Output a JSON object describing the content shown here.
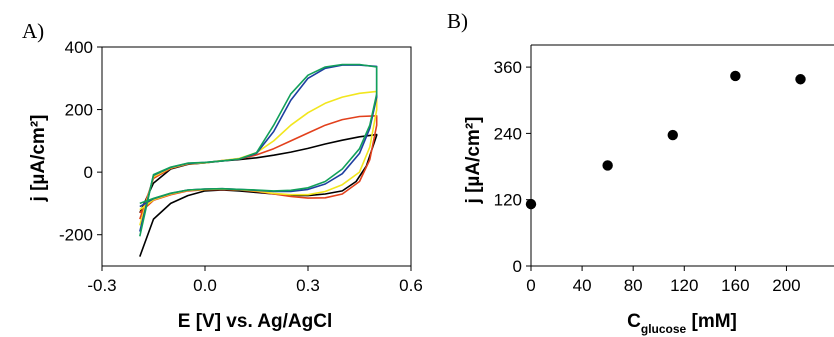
{
  "chart_data": [
    {
      "panel_label": "A)",
      "type": "line",
      "xlabel": "E [V] vs. Ag/AgCl",
      "ylabel": "j [µA/cm²]",
      "xlim": [
        -0.3,
        0.6
      ],
      "ylim": [
        -300,
        400
      ],
      "xticks": [
        "-0.3",
        "0.0",
        "0.3",
        "0.6"
      ],
      "yticks": [
        "-200",
        "0",
        "200",
        "400"
      ],
      "grid": false,
      "series": [
        {
          "color": "#000000",
          "x": [
            -0.19,
            -0.15,
            -0.1,
            -0.05,
            0.0,
            0.05,
            0.1,
            0.15,
            0.2,
            0.25,
            0.3,
            0.35,
            0.4,
            0.45,
            0.5,
            0.5,
            0.47,
            0.44,
            0.4,
            0.35,
            0.3,
            0.25,
            0.2,
            0.15,
            0.1,
            0.05,
            0.0,
            -0.05,
            -0.1,
            -0.15,
            -0.19
          ],
          "y": [
            -130,
            -35,
            10,
            25,
            30,
            36,
            40,
            46,
            54,
            64,
            76,
            90,
            102,
            113,
            120,
            118,
            20,
            -30,
            -60,
            -70,
            -75,
            -74,
            -70,
            -65,
            -60,
            -57,
            -60,
            -75,
            -100,
            -150,
            -270
          ]
        },
        {
          "color": "#e2401c",
          "x": [
            -0.19,
            -0.15,
            -0.1,
            -0.05,
            0.0,
            0.05,
            0.1,
            0.15,
            0.2,
            0.25,
            0.3,
            0.35,
            0.4,
            0.45,
            0.5,
            0.5,
            0.48,
            0.45,
            0.4,
            0.35,
            0.3,
            0.25,
            0.2,
            0.15,
            0.1,
            0.05,
            0.0,
            -0.05,
            -0.1,
            -0.15,
            -0.19
          ],
          "y": [
            -150,
            -20,
            12,
            26,
            30,
            37,
            42,
            55,
            75,
            100,
            125,
            150,
            168,
            178,
            180,
            150,
            40,
            -30,
            -70,
            -82,
            -83,
            -78,
            -70,
            -62,
            -57,
            -55,
            -56,
            -60,
            -72,
            -90,
            -130
          ]
        },
        {
          "color": "#f2e61e",
          "x": [
            -0.19,
            -0.15,
            -0.1,
            -0.05,
            0.0,
            0.05,
            0.1,
            0.15,
            0.2,
            0.25,
            0.3,
            0.35,
            0.4,
            0.45,
            0.5,
            0.5,
            0.48,
            0.45,
            0.4,
            0.35,
            0.3,
            0.25,
            0.2,
            0.15,
            0.1,
            0.05,
            0.0,
            -0.05,
            -0.1,
            -0.15,
            -0.19
          ],
          "y": [
            -170,
            -15,
            14,
            27,
            30,
            37,
            44,
            62,
            100,
            150,
            190,
            220,
            240,
            252,
            258,
            200,
            80,
            0,
            -40,
            -62,
            -72,
            -72,
            -68,
            -60,
            -56,
            -54,
            -55,
            -58,
            -70,
            -88,
            -120
          ]
        },
        {
          "color": "#1e3fa0",
          "x": [
            -0.19,
            -0.15,
            -0.1,
            -0.05,
            0.0,
            0.05,
            0.1,
            0.15,
            0.2,
            0.25,
            0.3,
            0.35,
            0.4,
            0.45,
            0.5,
            0.5,
            0.48,
            0.45,
            0.4,
            0.35,
            0.3,
            0.25,
            0.2,
            0.15,
            0.1,
            0.05,
            0.0,
            -0.05,
            -0.1,
            -0.15,
            -0.19
          ],
          "y": [
            -190,
            -10,
            15,
            28,
            31,
            36,
            42,
            60,
            130,
            230,
            300,
            332,
            342,
            342,
            338,
            240,
            140,
            60,
            -5,
            -38,
            -55,
            -62,
            -62,
            -58,
            -55,
            -53,
            -54,
            -57,
            -68,
            -85,
            -110
          ]
        },
        {
          "color": "#12a05a",
          "x": [
            -0.19,
            -0.15,
            -0.1,
            -0.05,
            0.0,
            0.05,
            0.1,
            0.15,
            0.2,
            0.25,
            0.3,
            0.35,
            0.4,
            0.45,
            0.5,
            0.5,
            0.48,
            0.45,
            0.4,
            0.35,
            0.3,
            0.25,
            0.2,
            0.15,
            0.1,
            0.05,
            0.0,
            -0.05,
            -0.1,
            -0.15,
            -0.19
          ],
          "y": [
            -205,
            -8,
            16,
            29,
            31,
            36,
            42,
            62,
            150,
            250,
            310,
            336,
            344,
            344,
            336,
            250,
            150,
            75,
            10,
            -30,
            -50,
            -58,
            -60,
            -57,
            -55,
            -53,
            -54,
            -57,
            -67,
            -84,
            -100
          ]
        }
      ]
    },
    {
      "panel_label": "B)",
      "type": "scatter",
      "xlabel_main": "C",
      "xlabel_sub": "glucose",
      "xlabel_unit": " [mM]",
      "ylabel": "j [µA/cm²]",
      "xlim": [
        0,
        220
      ],
      "ylim": [
        0,
        400
      ],
      "xticks": [
        "0",
        "40",
        "80",
        "120",
        "160",
        "200"
      ],
      "yticks": [
        "0",
        "120",
        "240",
        "360"
      ],
      "grid": false,
      "x": [
        0,
        60,
        111,
        160,
        211
      ],
      "y": [
        112,
        182,
        237,
        344,
        338
      ]
    }
  ]
}
